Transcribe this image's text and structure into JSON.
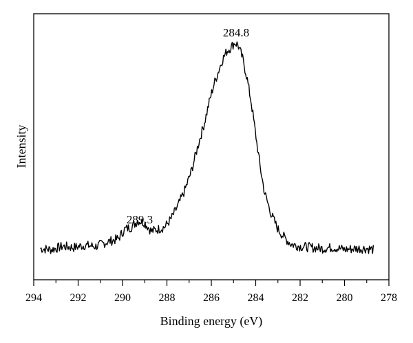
{
  "chart_data": {
    "type": "line",
    "title": "",
    "xlabel": "Binding energy (eV)",
    "ylabel": "Intensity",
    "x_reversed": true,
    "xlim": [
      294,
      278
    ],
    "ylim": [
      0,
      1
    ],
    "x_ticks": [
      294,
      292,
      290,
      288,
      286,
      284,
      282,
      280,
      278
    ],
    "x_tick_labels": [
      "294",
      "292",
      "290",
      "288",
      "286",
      "284",
      "282",
      "280",
      "278"
    ],
    "y_ticks_shown": false,
    "grid": false,
    "legend": "none",
    "annotations": [
      {
        "text": "284.8",
        "x": 284.8,
        "y": 1.0
      },
      {
        "text": "289.3",
        "x": 289.3,
        "y": 0.2
      }
    ],
    "series": [
      {
        "x": [
          293.7,
          293.2,
          292.7,
          292.2,
          291.7,
          291.2,
          290.7,
          290.2,
          289.9,
          289.6,
          289.3,
          289.0,
          288.7,
          288.4,
          288.1,
          287.8,
          287.5,
          287.2,
          286.9,
          286.6,
          286.3,
          286.1,
          285.9,
          285.7,
          285.5,
          285.3,
          285.1,
          284.95,
          284.8,
          284.6,
          284.4,
          284.2,
          284.0,
          283.8,
          283.6,
          283.3,
          283.0,
          282.7,
          282.4,
          282.0,
          281.5,
          281.0,
          280.5,
          280.0,
          279.5,
          279.0,
          278.7
        ],
        "y": [
          0.04,
          0.035,
          0.05,
          0.045,
          0.055,
          0.05,
          0.07,
          0.085,
          0.13,
          0.14,
          0.17,
          0.16,
          0.12,
          0.13,
          0.14,
          0.18,
          0.24,
          0.31,
          0.4,
          0.52,
          0.63,
          0.72,
          0.8,
          0.86,
          0.92,
          0.96,
          0.98,
          1.0,
          0.99,
          0.93,
          0.84,
          0.72,
          0.57,
          0.42,
          0.3,
          0.2,
          0.13,
          0.09,
          0.06,
          0.05,
          0.045,
          0.04,
          0.045,
          0.035,
          0.04,
          0.04,
          0.035
        ],
        "color": "#000000"
      }
    ]
  }
}
